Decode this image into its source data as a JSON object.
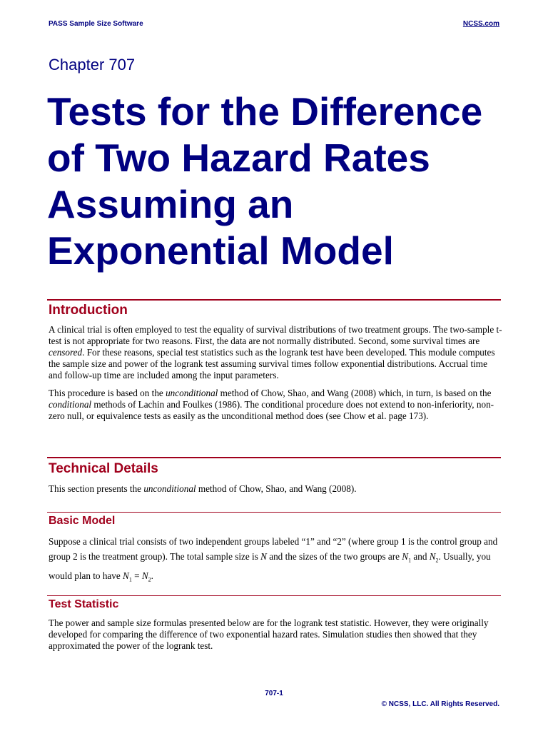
{
  "header": {
    "left": "PASS Sample Size Software",
    "right": "NCSS.com"
  },
  "chapter": "Chapter 707",
  "title": [
    "Tests for the Difference",
    "of Two Hazard Rates",
    "Assuming an",
    "Exponential Model"
  ],
  "sections": [
    {
      "heading": "Introduction",
      "paragraphs": [
        [
          "A clinical trial is often employed to test the equality of survival distributions of two treatment groups. The two-sample t-test is not appropriate for two reasons. First, the data are not normally distributed. Second, some survival times are ",
          "censored",
          ". For these reasons, special test statistics such as the logrank test have been developed. This module computes the sample size and power of the logrank test assuming survival times follow exponential distributions. Accrual time and follow-up time are included among the input parameters."
        ],
        [
          "This procedure is based on the ",
          "unconditional",
          " method of Chow, Shao, and Wang (2008) which, in turn, is based on the ",
          "conditional",
          " methods of Lachin and Foulkes (1986). The conditional procedure does not extend to non-inferiority, non-zero null, or equivalence tests as easily as the unconditional method does (see Chow et al. page 173)."
        ]
      ]
    },
    {
      "heading": "Technical Details",
      "paragraphs": [
        [
          "This section presents the ",
          "unconditional",
          " method of Chow, Shao, and Wang (2008)."
        ]
      ]
    },
    {
      "heading": "Basic Model",
      "paragraphs": [
        [
          "Suppose a clinical trial consists of two independent groups labeled “1” and “2” (where group 1 is the control group and group 2 is the treatment group). The total sample size is ",
          "N",
          " and the sizes of the two groups are ",
          "N",
          "1",
          " and ",
          "N",
          "2",
          ". Usually, you would plan to have ",
          "N",
          "1",
          " = ",
          "N",
          "2",
          "."
        ]
      ]
    },
    {
      "heading": "Test Statistic",
      "paragraphs": [
        [
          "The power and sample size formulas presented below are for the logrank test statistic. However, they were originally developed for comparing the difference of two exponential hazard rates.  Simulation studies then showed that they approximated the power of the logrank test."
        ]
      ]
    }
  ],
  "footer": {
    "page": "707-1",
    "copyright": "© NCSS, LLC. All Rights Reserved."
  }
}
